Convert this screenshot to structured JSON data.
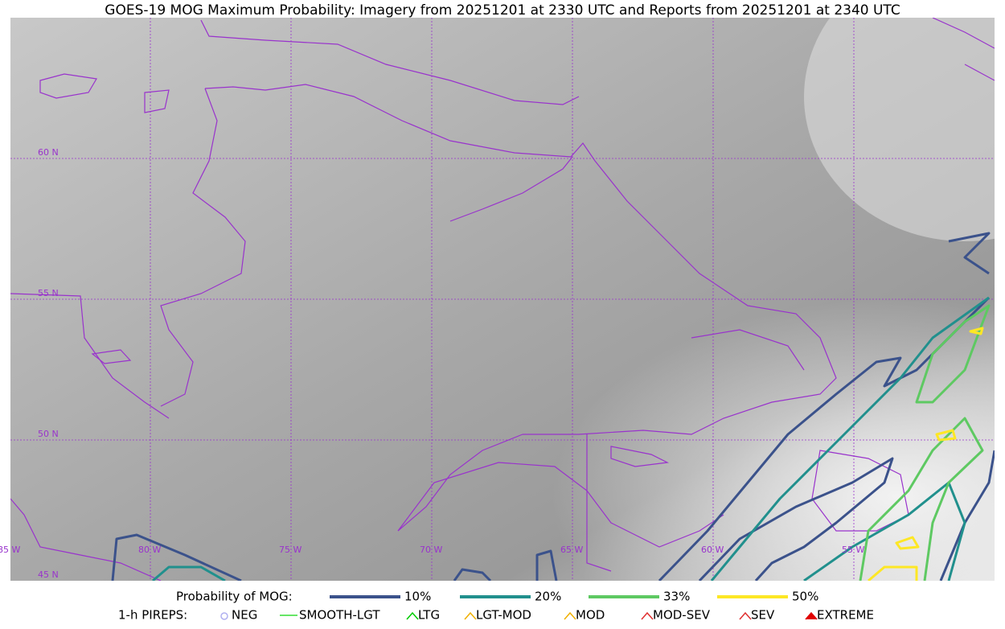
{
  "header": {
    "title": "GOES-19 MOG Maximum Probability: Imagery from 20251201 at 2330 UTC and Reports from 20251201 at 2340 UTC"
  },
  "map": {
    "lat_labels": [
      "60 N",
      "55 N",
      "50 N",
      "45 N"
    ],
    "lon_labels": [
      "85 W",
      "80 W",
      "75 W",
      "70 W",
      "65 W",
      "60 W",
      "55 W"
    ]
  },
  "legend": {
    "probability": {
      "title": "Probability of MOG:",
      "items": [
        {
          "label": "10%",
          "color": "#3b528b"
        },
        {
          "label": "20%",
          "color": "#21908d"
        },
        {
          "label": "33%",
          "color": "#5ec962"
        },
        {
          "label": "50%",
          "color": "#fde725"
        }
      ]
    },
    "pireps": {
      "title": "1-h PIREPS:",
      "items": [
        {
          "label": "NEG",
          "color": "#b0b0f0"
        },
        {
          "label": "SMOOTH-LGT",
          "color": "#33dd33"
        },
        {
          "label": "LTG",
          "color": "#00cc00"
        },
        {
          "label": "LGT-MOD",
          "color": "#f0b000"
        },
        {
          "label": "MOD",
          "color": "#f0b000"
        },
        {
          "label": "MOD-SEV",
          "color": "#e03030"
        },
        {
          "label": "SEV",
          "color": "#e03030"
        },
        {
          "label": "EXTREME",
          "color": "#e00000"
        }
      ]
    }
  }
}
